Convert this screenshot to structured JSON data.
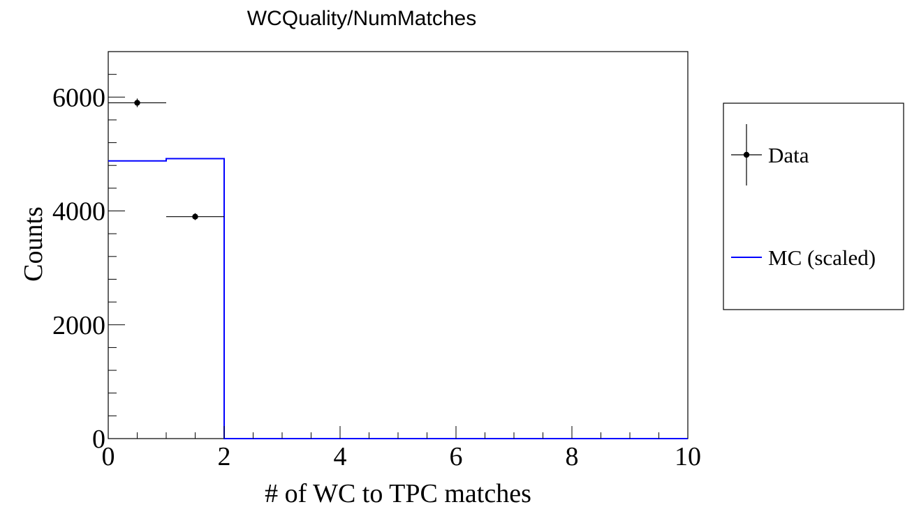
{
  "chart_data": {
    "type": "histogram",
    "title": "WCQuality/NumMatches",
    "xlabel": "# of WC to TPC matches",
    "ylabel": "Counts",
    "xlim": [
      0,
      10
    ],
    "ylim": [
      0,
      6800
    ],
    "x_ticks": [
      0,
      2,
      4,
      6,
      8,
      10
    ],
    "y_ticks": [
      0,
      2000,
      4000,
      6000
    ],
    "x_tick_labels": [
      "0",
      "2",
      "4",
      "6",
      "8",
      "10"
    ],
    "y_tick_labels": [
      "0",
      "2000",
      "4000",
      "6000"
    ],
    "bin_edges": [
      0,
      1,
      2,
      3,
      4,
      5,
      6,
      7,
      8,
      9,
      10
    ],
    "series": [
      {
        "name": "Data",
        "style": "points-with-errors",
        "color": "#000000",
        "points": [
          {
            "x": 0.5,
            "y": 5900,
            "yerr": 75,
            "xerr": 0.5
          },
          {
            "x": 1.5,
            "y": 3900,
            "yerr": 60,
            "xerr": 0.5
          }
        ]
      },
      {
        "name": "MC (scaled)",
        "style": "step",
        "color": "#0000ff",
        "values": [
          4880,
          4920,
          0,
          0,
          0,
          0,
          0,
          0,
          0,
          0
        ]
      }
    ],
    "legend": {
      "position": "right",
      "entries": [
        {
          "label": "Data",
          "marker": "point-errorbar",
          "color": "#000000"
        },
        {
          "label": "MC (scaled)",
          "marker": "line",
          "color": "#0000ff"
        }
      ]
    },
    "grid": false
  }
}
